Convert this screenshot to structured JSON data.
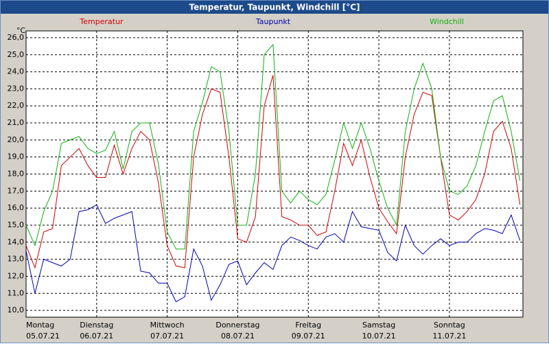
{
  "chart_data": {
    "type": "line",
    "title": "Temperatur, Taupunkt, Windchill [°C]",
    "y_unit": "°C",
    "x": [
      0,
      3,
      6,
      9,
      12,
      15,
      18,
      21,
      24,
      27,
      30,
      33,
      36,
      39,
      42,
      45,
      48,
      51,
      54,
      57,
      60,
      63,
      66,
      69,
      72,
      75,
      78,
      81,
      84,
      87,
      90,
      93,
      96,
      99,
      102,
      105,
      108,
      111,
      114,
      117,
      120,
      123,
      126,
      129,
      132,
      135,
      138,
      141,
      144,
      147,
      150,
      153,
      156,
      159,
      162,
      165,
      168
    ],
    "xlim": [
      0,
      169
    ],
    "xticks": [
      {
        "value": 0,
        "label": "Montag",
        "date": "05.07.21"
      },
      {
        "value": 24,
        "label": "Dienstag",
        "date": "06.07.21"
      },
      {
        "value": 48,
        "label": "Mittwoch",
        "date": "07.07.21"
      },
      {
        "value": 72,
        "label": "Donnerstag",
        "date": "08.07.21"
      },
      {
        "value": 96,
        "label": "Freitag",
        "date": "09.07.21"
      },
      {
        "value": 120,
        "label": "Samstag",
        "date": "10.07.21"
      },
      {
        "value": 144,
        "label": "Sonntag",
        "date": "11.07.21"
      }
    ],
    "ylim": [
      9.6,
      26.4
    ],
    "yticks": [
      {
        "value": 10,
        "label": "10,0"
      },
      {
        "value": 11,
        "label": "11,0"
      },
      {
        "value": 12,
        "label": "12,0"
      },
      {
        "value": 13,
        "label": "13,0"
      },
      {
        "value": 14,
        "label": "14,0"
      },
      {
        "value": 15,
        "label": "15,0"
      },
      {
        "value": 16,
        "label": "16,0"
      },
      {
        "value": 17,
        "label": "17,0"
      },
      {
        "value": 18,
        "label": "18,0"
      },
      {
        "value": 19,
        "label": "19,0"
      },
      {
        "value": 20,
        "label": "20,0"
      },
      {
        "value": 21,
        "label": "21,0"
      },
      {
        "value": 22,
        "label": "22,0"
      },
      {
        "value": 23,
        "label": "23,0"
      },
      {
        "value": 24,
        "label": "24,0"
      },
      {
        "value": 25,
        "label": "25,0"
      },
      {
        "value": 26,
        "label": "26,0"
      }
    ],
    "grid": true,
    "series": [
      {
        "name": "Temperatur",
        "color": "#d00000",
        "values": [
          13.8,
          12.5,
          14.6,
          14.8,
          18.5,
          19.0,
          19.5,
          18.5,
          17.8,
          17.8,
          19.7,
          18.0,
          19.5,
          20.5,
          20.0,
          17.5,
          13.8,
          12.6,
          12.5,
          19.0,
          21.5,
          23.0,
          22.8,
          19.0,
          14.2,
          14.0,
          15.5,
          22.0,
          23.8,
          15.5,
          15.3,
          15.0,
          15.0,
          14.4,
          14.6,
          17.0,
          19.8,
          18.5,
          20.0,
          17.8,
          16.0,
          15.2,
          14.5,
          19.0,
          21.5,
          22.8,
          22.6,
          19.0,
          15.6,
          15.3,
          15.8,
          16.5,
          18.0,
          20.5,
          21.1,
          19.5,
          16.2
        ]
      },
      {
        "name": "Taupunkt",
        "color": "#0000b0",
        "values": [
          13.5,
          11.0,
          13.0,
          12.8,
          12.6,
          13.0,
          15.8,
          15.9,
          16.2,
          15.1,
          15.4,
          15.6,
          15.8,
          12.3,
          12.2,
          11.6,
          11.6,
          10.5,
          10.8,
          13.6,
          12.6,
          10.6,
          11.5,
          12.7,
          12.9,
          11.5,
          12.2,
          12.8,
          12.4,
          13.8,
          14.3,
          14.1,
          13.8,
          13.6,
          14.3,
          14.5,
          14.0,
          15.8,
          14.9,
          14.8,
          14.7,
          13.4,
          12.9,
          15.0,
          13.8,
          13.3,
          13.8,
          14.2,
          13.8,
          14.0,
          14.0,
          14.5,
          14.8,
          14.7,
          14.5,
          15.6,
          14.1
        ]
      },
      {
        "name": "Windchill",
        "color": "#10b010",
        "values": [
          15.0,
          13.8,
          15.8,
          17.0,
          19.8,
          20.0,
          20.2,
          19.5,
          19.2,
          19.4,
          20.5,
          18.3,
          20.5,
          21.0,
          21.0,
          18.6,
          14.6,
          13.6,
          13.6,
          20.5,
          22.2,
          24.3,
          24.0,
          20.5,
          15.0,
          15.0,
          18.0,
          25.0,
          25.6,
          17.0,
          16.3,
          17.0,
          16.5,
          16.2,
          16.8,
          18.8,
          21.0,
          19.5,
          21.0,
          19.5,
          17.6,
          16.0,
          15.0,
          20.5,
          23.0,
          24.5,
          23.0,
          19.0,
          17.0,
          16.8,
          17.3,
          18.5,
          20.5,
          22.3,
          22.6,
          20.5,
          17.6
        ]
      }
    ]
  }
}
